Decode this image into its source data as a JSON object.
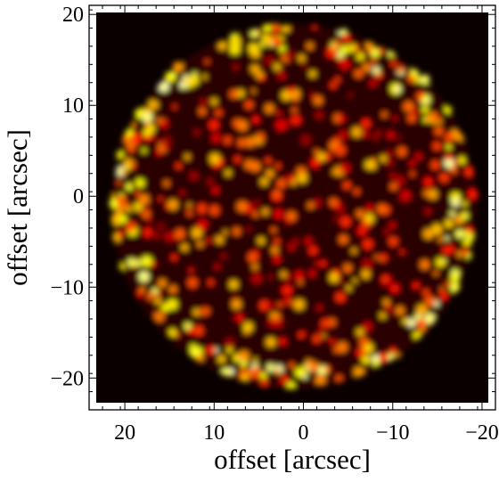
{
  "chart_data": {
    "type": "image",
    "xlabel": "offset [arcsec]",
    "ylabel": "offset [arcsec]",
    "xlim": [
      24,
      -21.5
    ],
    "ylim": [
      -23.5,
      21
    ],
    "xticks": [
      20,
      10,
      0,
      {
        "value": -10,
        "label": "−10"
      },
      {
        "value": -20,
        "label": "−20"
      }
    ],
    "yticks": [
      20,
      10,
      0,
      {
        "value": -10,
        "label": "−10"
      },
      {
        "value": -20,
        "label": "−20"
      }
    ],
    "colormap": "hot"
  }
}
